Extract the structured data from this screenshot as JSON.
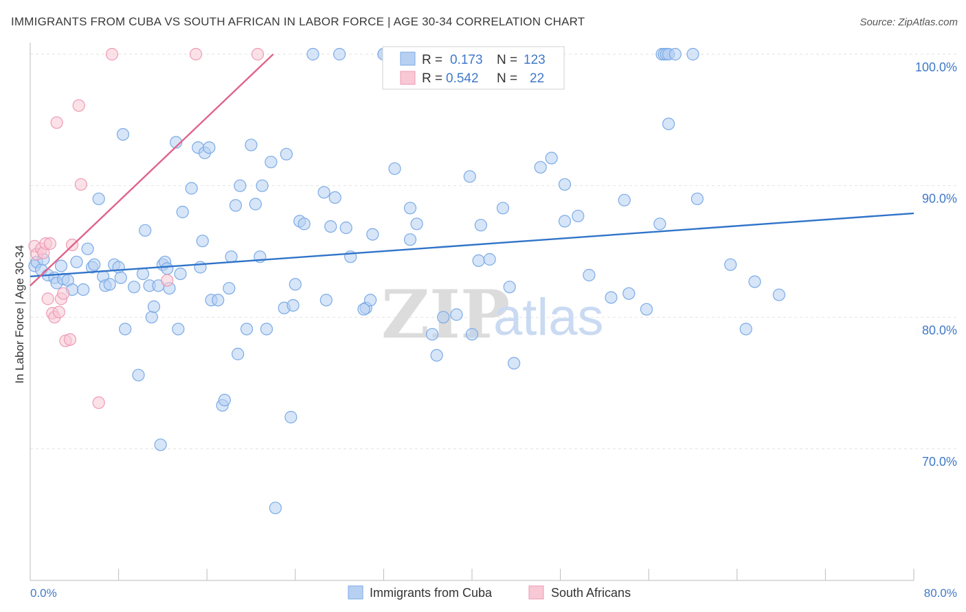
{
  "title": "IMMIGRANTS FROM CUBA VS SOUTH AFRICAN IN LABOR FORCE | AGE 30-34 CORRELATION CHART",
  "source": "Source: ZipAtlas.com",
  "watermark": {
    "zip": "ZIP",
    "atlas": "atlas"
  },
  "chart_data": {
    "type": "scatter",
    "ylabel": "In Labor Force | Age 30-34",
    "xlim": [
      0,
      80
    ],
    "ylim": [
      60.5,
      101.5
    ],
    "x_tick_labels": {
      "min": "0.0%",
      "max": "80.0%"
    },
    "y_ticks": [
      {
        "value": 100,
        "label": "100.0%"
      },
      {
        "value": 90,
        "label": "90.0%"
      },
      {
        "value": 80,
        "label": "80.0%"
      },
      {
        "value": 70,
        "label": "70.0%"
      }
    ],
    "grid": true,
    "legend_position": "top-center",
    "stats": [
      {
        "r_label": "R =",
        "r": "0.173",
        "n_label": "N =",
        "n": "123"
      },
      {
        "r_label": "R =",
        "r": "0.542",
        "n_label": "N =",
        "n": "22"
      }
    ],
    "series": [
      {
        "name": "Immigrants from Cuba",
        "color": "#7aaae6",
        "fill": "#b7d0f2",
        "trend_color": "#2f73c9",
        "trend": [
          [
            0,
            83.1
          ],
          [
            80,
            87.9
          ]
        ],
        "points": [
          [
            0.4,
            83.9
          ],
          [
            0.6,
            84.2
          ],
          [
            1.0,
            83.6
          ],
          [
            1.2,
            84.4
          ],
          [
            1.6,
            83.2
          ],
          [
            2.2,
            83.0
          ],
          [
            2.4,
            82.6
          ],
          [
            2.8,
            83.9
          ],
          [
            3.0,
            82.9
          ],
          [
            3.4,
            82.8
          ],
          [
            3.8,
            82.1
          ],
          [
            4.2,
            84.2
          ],
          [
            4.8,
            82.1
          ],
          [
            5.2,
            85.2
          ],
          [
            5.6,
            83.8
          ],
          [
            5.8,
            84.0
          ],
          [
            6.2,
            89.0
          ],
          [
            6.6,
            83.1
          ],
          [
            6.8,
            82.4
          ],
          [
            7.2,
            82.5
          ],
          [
            7.6,
            84.0
          ],
          [
            8.0,
            83.8
          ],
          [
            8.2,
            83.0
          ],
          [
            8.6,
            79.1
          ],
          [
            8.4,
            93.9
          ],
          [
            9.4,
            82.3
          ],
          [
            9.8,
            75.6
          ],
          [
            10.2,
            83.3
          ],
          [
            10.4,
            86.6
          ],
          [
            10.8,
            82.4
          ],
          [
            11.0,
            80.0
          ],
          [
            11.2,
            80.8
          ],
          [
            11.8,
            70.3
          ],
          [
            11.6,
            82.4
          ],
          [
            12.0,
            84.0
          ],
          [
            12.2,
            84.2
          ],
          [
            12.4,
            83.7
          ],
          [
            12.6,
            82.2
          ],
          [
            13.2,
            93.3
          ],
          [
            13.4,
            79.1
          ],
          [
            13.6,
            83.3
          ],
          [
            13.8,
            88.0
          ],
          [
            14.6,
            89.8
          ],
          [
            15.2,
            92.9
          ],
          [
            15.4,
            83.8
          ],
          [
            15.6,
            85.8
          ],
          [
            15.8,
            92.5
          ],
          [
            16.2,
            92.9
          ],
          [
            16.4,
            81.3
          ],
          [
            17.4,
            73.3
          ],
          [
            17.6,
            73.7
          ],
          [
            17.0,
            81.3
          ],
          [
            18.0,
            82.2
          ],
          [
            18.2,
            84.6
          ],
          [
            18.6,
            88.5
          ],
          [
            18.8,
            77.2
          ],
          [
            19.0,
            90.0
          ],
          [
            19.6,
            79.1
          ],
          [
            20.0,
            93.1
          ],
          [
            20.4,
            88.6
          ],
          [
            20.8,
            84.6
          ],
          [
            21.0,
            90.0
          ],
          [
            21.4,
            79.1
          ],
          [
            21.8,
            91.8
          ],
          [
            22.2,
            65.5
          ],
          [
            23.0,
            80.7
          ],
          [
            23.2,
            92.4
          ],
          [
            23.6,
            72.4
          ],
          [
            23.8,
            80.9
          ],
          [
            24.0,
            82.5
          ],
          [
            24.4,
            87.3
          ],
          [
            24.8,
            87.1
          ],
          [
            25.6,
            100.0
          ],
          [
            26.6,
            89.5
          ],
          [
            26.8,
            81.3
          ],
          [
            27.6,
            89.1
          ],
          [
            28.0,
            100.0
          ],
          [
            27.2,
            86.9
          ],
          [
            28.6,
            86.8
          ],
          [
            29.0,
            84.6
          ],
          [
            30.4,
            80.7
          ],
          [
            30.8,
            81.3
          ],
          [
            30.2,
            80.6
          ],
          [
            31.0,
            86.3
          ],
          [
            32.0,
            100.0
          ],
          [
            33.0,
            91.3
          ],
          [
            34.4,
            88.3
          ],
          [
            34.4,
            85.9
          ],
          [
            35.0,
            87.1
          ],
          [
            36.4,
            78.7
          ],
          [
            36.8,
            77.1
          ],
          [
            37.4,
            80.0
          ],
          [
            38.6,
            80.2
          ],
          [
            39.8,
            90.7
          ],
          [
            40.0,
            78.7
          ],
          [
            40.6,
            84.3
          ],
          [
            40.8,
            87.0
          ],
          [
            41.6,
            84.4
          ],
          [
            42.8,
            88.3
          ],
          [
            43.4,
            82.3
          ],
          [
            43.8,
            76.5
          ],
          [
            46.2,
            91.4
          ],
          [
            47.2,
            92.1
          ],
          [
            48.4,
            90.1
          ],
          [
            48.4,
            87.3
          ],
          [
            49.6,
            87.7
          ],
          [
            50.6,
            83.2
          ],
          [
            52.6,
            81.5
          ],
          [
            53.8,
            88.9
          ],
          [
            54.2,
            81.8
          ],
          [
            55.8,
            80.6
          ],
          [
            57.0,
            87.1
          ],
          [
            57.8,
            94.7
          ],
          [
            57.2,
            100.0
          ],
          [
            57.4,
            100.0
          ],
          [
            57.6,
            100.0
          ],
          [
            57.8,
            100.0
          ],
          [
            58.4,
            100.0
          ],
          [
            60.4,
            89.0
          ],
          [
            63.4,
            84.0
          ],
          [
            64.8,
            79.1
          ],
          [
            65.6,
            82.7
          ],
          [
            67.8,
            81.7
          ],
          [
            60.0,
            100.0
          ],
          [
            32.0,
            100.0
          ]
        ]
      },
      {
        "name": "South Africans",
        "color": "#ee9ab3",
        "fill": "#f8c8d5",
        "trend_color": "#e0628a",
        "trend": [
          [
            0,
            82.4
          ],
          [
            22,
            100.0
          ]
        ],
        "points": [
          [
            0.4,
            85.4
          ],
          [
            0.6,
            84.8
          ],
          [
            1.0,
            85.2
          ],
          [
            1.2,
            84.9
          ],
          [
            1.4,
            85.6
          ],
          [
            1.6,
            81.4
          ],
          [
            1.8,
            85.6
          ],
          [
            2.0,
            80.3
          ],
          [
            2.2,
            80.0
          ],
          [
            2.4,
            94.8
          ],
          [
            2.6,
            80.4
          ],
          [
            2.8,
            81.4
          ],
          [
            3.0,
            81.8
          ],
          [
            3.2,
            78.2
          ],
          [
            3.6,
            78.3
          ],
          [
            3.8,
            85.5
          ],
          [
            4.4,
            96.1
          ],
          [
            4.6,
            90.1
          ],
          [
            6.2,
            73.5
          ],
          [
            7.4,
            100.0
          ],
          [
            12.4,
            82.8
          ],
          [
            15.0,
            100.0
          ],
          [
            20.6,
            100.0
          ]
        ]
      }
    ]
  }
}
